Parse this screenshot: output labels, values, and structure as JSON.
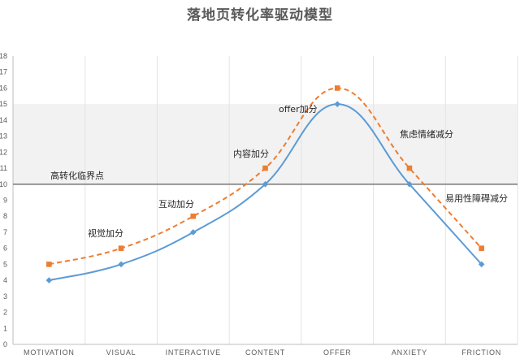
{
  "chart_data": {
    "type": "line",
    "title": "落地页转化率驱动模型",
    "categories": [
      "MOTIVATION",
      "VISUAL",
      "INTERACTIVE",
      "CONTENT",
      "OFFER",
      "ANXIETY",
      "FRICTION"
    ],
    "series": [
      {
        "values": [
          4,
          5,
          7,
          10,
          15,
          10,
          5
        ],
        "color": "#5B9BD5",
        "style": "solid",
        "marker": "diamond"
      },
      {
        "values": [
          5,
          6,
          8,
          11,
          16,
          11,
          6
        ],
        "color": "#ED7D31",
        "style": "dashed",
        "marker": "square"
      }
    ],
    "ylim": [
      0,
      18
    ],
    "yticks": [
      0,
      1,
      2,
      3,
      4,
      5,
      6,
      7,
      8,
      9,
      10,
      11,
      12,
      13,
      14,
      15,
      16,
      17,
      18
    ],
    "band": {
      "from": 10,
      "to": 15,
      "color": "#F2F2F2"
    },
    "threshold": {
      "value": 10,
      "label": "高转化临界点",
      "color": "#7F7F7F"
    },
    "annotations": [
      {
        "label": "视觉加分",
        "category": "VISUAL"
      },
      {
        "label": "互动加分",
        "category": "INTERACTIVE"
      },
      {
        "label": "内容加分",
        "category": "CONTENT"
      },
      {
        "label": "offer加分",
        "category": "OFFER"
      },
      {
        "label": "焦虑情绪减分",
        "category": "ANXIETY"
      },
      {
        "label": "易用性障碍减分",
        "category": "FRICTION"
      }
    ],
    "grid": "vertical",
    "legend": "none"
  }
}
